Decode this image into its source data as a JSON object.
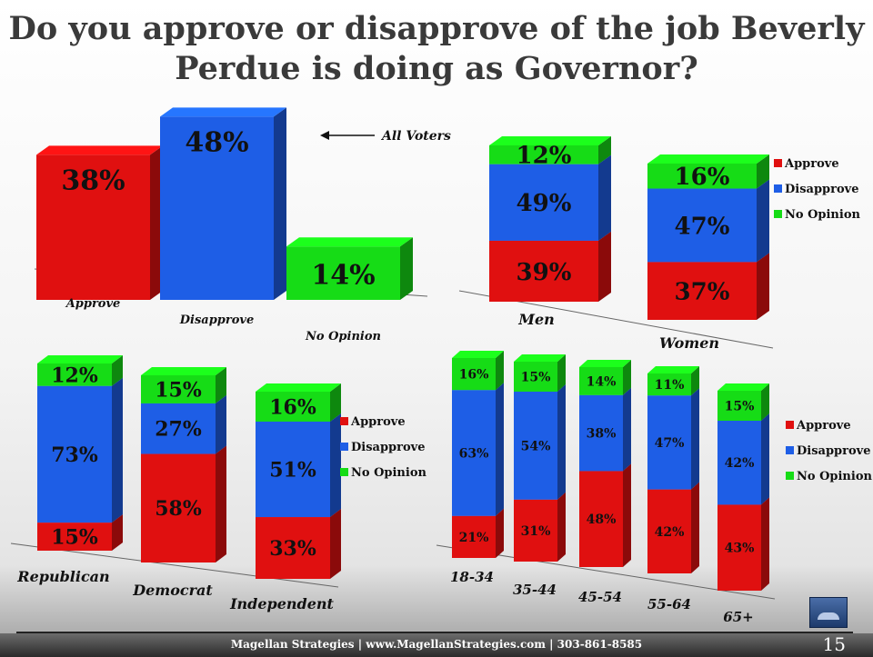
{
  "page": {
    "title_line1": "Do you approve or disapprove of the job Beverly",
    "title_line2": "Perdue is doing as Governor?",
    "footer": "Magellan Strategies | www.MagellanStrategies.com | 303-861-8585",
    "page_number": "15",
    "all_voters_label": "All Voters"
  },
  "colors": {
    "approve": "#e01010",
    "disapprove": "#1e5ee6",
    "no_opinion": "#16dc16"
  },
  "chart_data": [
    {
      "type": "bar",
      "categories": [
        "Approve",
        "Disapprove",
        "No Opinion"
      ],
      "values": [
        38,
        48,
        14
      ],
      "value_labels": [
        "38%",
        "48%",
        "14%"
      ]
    },
    {
      "type": "bar",
      "stacked": true,
      "categories": [
        "Men",
        "Women"
      ],
      "series": [
        {
          "name": "Approve",
          "values": [
            39,
            37
          ],
          "labels": [
            "39%",
            "37%"
          ]
        },
        {
          "name": "Disapprove",
          "values": [
            49,
            47
          ],
          "labels": [
            "49%",
            "47%"
          ]
        },
        {
          "name": "No Opinion",
          "values": [
            12,
            16
          ],
          "labels": [
            "12%",
            "16%"
          ]
        }
      ],
      "legend": [
        "Approve",
        "Disapprove",
        "No Opinion"
      ]
    },
    {
      "type": "bar",
      "stacked": true,
      "categories": [
        "Republican",
        "Democrat",
        "Independent"
      ],
      "series": [
        {
          "name": "Approve",
          "values": [
            15,
            58,
            33
          ],
          "labels": [
            "15%",
            "58%",
            "33%"
          ]
        },
        {
          "name": "Disapprove",
          "values": [
            73,
            27,
            51
          ],
          "labels": [
            "73%",
            "27%",
            "51%"
          ]
        },
        {
          "name": "No Opinion",
          "values": [
            12,
            15,
            16
          ],
          "labels": [
            "12%",
            "15%",
            "16%"
          ]
        }
      ],
      "legend": [
        "Approve",
        "Disapprove",
        "No Opinion"
      ]
    },
    {
      "type": "bar",
      "stacked": true,
      "categories": [
        "18-34",
        "35-44",
        "45-54",
        "55-64",
        "65+"
      ],
      "series": [
        {
          "name": "Approve",
          "values": [
            21,
            31,
            48,
            42,
            43
          ],
          "labels": [
            "21%",
            "31%",
            "48%",
            "42%",
            "43%"
          ]
        },
        {
          "name": "Disapprove",
          "values": [
            63,
            54,
            38,
            47,
            42
          ],
          "labels": [
            "63%",
            "54%",
            "38%",
            "47%",
            "42%"
          ]
        },
        {
          "name": "No Opinion",
          "values": [
            16,
            15,
            14,
            11,
            15
          ],
          "labels": [
            "16%",
            "15%",
            "14%",
            "11%",
            "15%"
          ]
        }
      ],
      "legend": [
        "Approve",
        "Disapprove",
        "No Opinion"
      ]
    }
  ]
}
